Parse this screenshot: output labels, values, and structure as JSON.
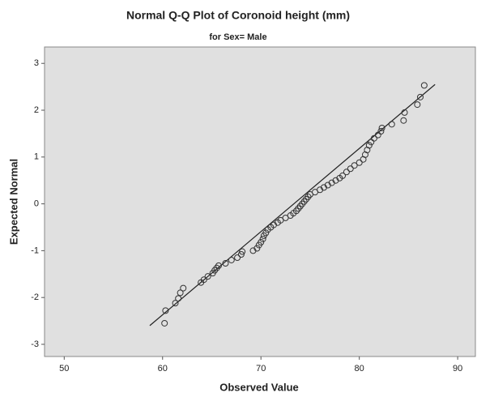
{
  "chart_data": {
    "type": "scatter",
    "title": "Normal Q-Q Plot of Coronoid height (mm)",
    "subtitle": "for Sex= Male",
    "x_label": "Observed Value",
    "y_label": "Expected Normal",
    "xlim": [
      48.0,
      91.8
    ],
    "ylim": [
      -3.26,
      3.35
    ],
    "xticks": [
      50,
      60,
      70,
      80,
      90
    ],
    "yticks": [
      -3,
      -2,
      -1,
      0,
      1,
      2,
      3
    ],
    "background": "#e0e0e0",
    "color": "#333333",
    "x": [
      60.2,
      60.3,
      61.3,
      61.6,
      61.8,
      62.1,
      63.9,
      64.2,
      64.6,
      65.1,
      65.3,
      65.5,
      65.7,
      66.4,
      67.0,
      67.6,
      68.0,
      68.1,
      69.2,
      69.6,
      69.8,
      70.0,
      70.2,
      70.3,
      70.5,
      70.7,
      71.0,
      71.3,
      71.7,
      72.0,
      72.5,
      73.0,
      73.3,
      73.6,
      73.8,
      74.0,
      74.2,
      74.4,
      74.6,
      74.8,
      75.0,
      75.5,
      76.0,
      76.4,
      76.8,
      77.2,
      77.6,
      78.0,
      78.3,
      78.7,
      79.1,
      79.5,
      80.0,
      80.4,
      80.6,
      80.8,
      81.0,
      81.2,
      81.5,
      81.9,
      82.2,
      82.3,
      83.3,
      84.5,
      84.6,
      85.9,
      86.2,
      86.6
    ],
    "values": [
      -2.55,
      -2.28,
      -2.12,
      -2.02,
      -1.9,
      -1.8,
      -1.68,
      -1.62,
      -1.55,
      -1.48,
      -1.42,
      -1.37,
      -1.32,
      -1.27,
      -1.2,
      -1.15,
      -1.08,
      -1.02,
      -1.0,
      -0.95,
      -0.88,
      -0.82,
      -0.75,
      -0.68,
      -0.62,
      -0.55,
      -0.5,
      -0.45,
      -0.4,
      -0.35,
      -0.3,
      -0.25,
      -0.2,
      -0.15,
      -0.1,
      -0.05,
      0.0,
      0.05,
      0.1,
      0.15,
      0.2,
      0.25,
      0.3,
      0.35,
      0.4,
      0.45,
      0.5,
      0.55,
      0.6,
      0.68,
      0.75,
      0.82,
      0.88,
      0.95,
      1.05,
      1.15,
      1.25,
      1.32,
      1.4,
      1.47,
      1.55,
      1.62,
      1.7,
      1.78,
      1.95,
      2.12,
      2.28,
      2.53
    ],
    "reference_line": {
      "x": [
        58.7,
        87.7
      ],
      "y": [
        -2.6,
        2.55
      ]
    }
  }
}
